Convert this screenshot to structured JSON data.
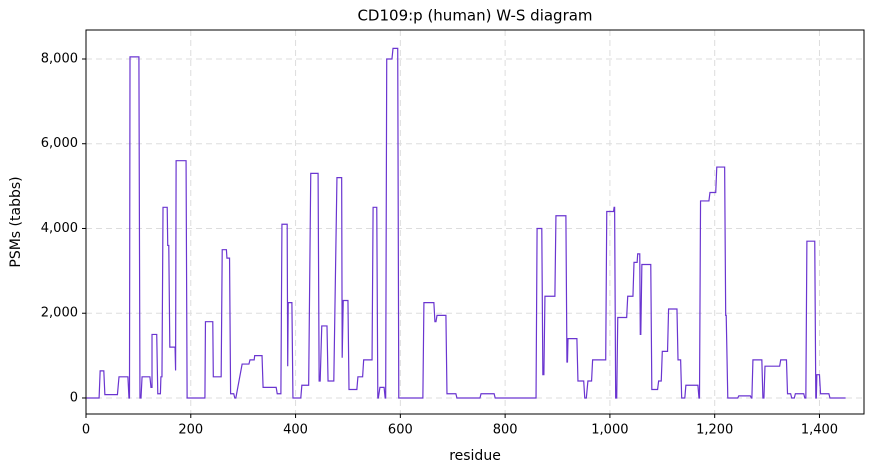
{
  "chart_data": {
    "type": "line",
    "title": "CD109:p (human) W-S diagram",
    "x_label": "residue",
    "y_label": "PSMs (tabbs)",
    "xlim": [
      0,
      1485
    ],
    "ylim": [
      -378,
      8684
    ],
    "xticks": [
      0,
      200,
      400,
      600,
      800,
      {
        "value": 1000,
        "label": "1,000"
      },
      {
        "value": 1200,
        "label": "1,200"
      },
      {
        "value": 1400,
        "label": "1,400"
      }
    ],
    "yticks": [
      0,
      {
        "value": 2000,
        "label": "2,000"
      },
      {
        "value": 4000,
        "label": "4,000"
      },
      {
        "value": 6000,
        "label": "6,000"
      },
      {
        "value": 8000,
        "label": "8,000"
      }
    ],
    "grid": true,
    "series": [
      {
        "color": "#6a35d0",
        "x": [
          0,
          25,
          27,
          34,
          36,
          60,
          63,
          80,
          82,
          83,
          84,
          101,
          103,
          105,
          107,
          122,
          124,
          126,
          126,
          135,
          137,
          142,
          143,
          145,
          147,
          155,
          156,
          158,
          160,
          170,
          171,
          171,
          172,
          191,
          193,
          227,
          228,
          242,
          243,
          258,
          260,
          268,
          269,
          274,
          276,
          282,
          284,
          286,
          298,
          311,
          313,
          321,
          322,
          336,
          338,
          363,
          365,
          372,
          374,
          384,
          385,
          385,
          386,
          393,
          395,
          410,
          412,
          425,
          429,
          443,
          445,
          447,
          450,
          460,
          462,
          473,
          479,
          488,
          489,
          489,
          491,
          500,
          502,
          517,
          519,
          528,
          530,
          546,
          548,
          555,
          557,
          558,
          561,
          569,
          571,
          572,
          574,
          584,
          586,
          595,
          597,
          643,
          645,
          664,
          666,
          668,
          670,
          687,
          689,
          706,
          708,
          752,
          754,
          779,
          781,
          859,
          861,
          870,
          872,
          874,
          876,
          895,
          897,
          916,
          918,
          919,
          920,
          937,
          939,
          950,
          952,
          955,
          958,
          965,
          967,
          992,
          994,
          1007,
          1008,
          1009,
          1011,
          1013,
          1015,
          1032,
          1034,
          1044,
          1046,
          1052,
          1053,
          1057,
          1058,
          1059,
          1061,
          1078,
          1080,
          1091,
          1093,
          1098,
          1100,
          1110,
          1112,
          1128,
          1130,
          1135,
          1137,
          1143,
          1145,
          1168,
          1170,
          1171,
          1173,
          1189,
          1191,
          1202,
          1204,
          1219,
          1221,
          1222,
          1225,
          1244,
          1246,
          1268,
          1270,
          1271,
          1273,
          1290,
          1292,
          1294,
          1296,
          1324,
          1326,
          1337,
          1339,
          1345,
          1347,
          1352,
          1354,
          1370,
          1372,
          1374,
          1376,
          1391,
          1393,
          1394,
          1395,
          1400,
          1402,
          1418,
          1420,
          1450
        ],
        "values": [
          0,
          0,
          640,
          640,
          80,
          80,
          500,
          500,
          0,
          0,
          8050,
          8050,
          0,
          0,
          500,
          500,
          250,
          250,
          1500,
          1500,
          100,
          100,
          500,
          500,
          4500,
          4500,
          3600,
          3600,
          1200,
          1200,
          650,
          650,
          5600,
          5600,
          0,
          0,
          1800,
          1800,
          500,
          500,
          3500,
          3500,
          3300,
          3300,
          100,
          100,
          0,
          0,
          800,
          800,
          900,
          900,
          1000,
          1000,
          250,
          250,
          100,
          100,
          4100,
          4100,
          750,
          750,
          2250,
          2250,
          0,
          0,
          300,
          300,
          5300,
          5300,
          400,
          400,
          1700,
          1700,
          400,
          400,
          5200,
          5200,
          950,
          950,
          2300,
          2300,
          200,
          200,
          500,
          500,
          900,
          900,
          4500,
          4500,
          0,
          0,
          250,
          250,
          0,
          0,
          8000,
          8000,
          8250,
          8250,
          0,
          0,
          2250,
          2250,
          1800,
          1800,
          1950,
          1950,
          100,
          100,
          0,
          0,
          100,
          100,
          0,
          0,
          4000,
          4000,
          550,
          550,
          2400,
          2400,
          4300,
          4300,
          850,
          850,
          1400,
          1400,
          400,
          400,
          0,
          0,
          400,
          400,
          900,
          900,
          4400,
          4400,
          4500,
          4500,
          0,
          0,
          1900,
          1900,
          2400,
          2400,
          3200,
          3200,
          3400,
          3400,
          1500,
          1500,
          3150,
          3150,
          200,
          200,
          400,
          400,
          1100,
          1100,
          2100,
          2100,
          900,
          900,
          0,
          0,
          300,
          300,
          0,
          0,
          4650,
          4650,
          4850,
          4850,
          5450,
          5450,
          1950,
          1950,
          0,
          0,
          50,
          50,
          0,
          0,
          900,
          900,
          0,
          0,
          750,
          750,
          900,
          900,
          100,
          100,
          0,
          0,
          100,
          100,
          0,
          0,
          3700,
          3700,
          0,
          0,
          550,
          550,
          100,
          100,
          0,
          0
        ]
      }
    ]
  }
}
